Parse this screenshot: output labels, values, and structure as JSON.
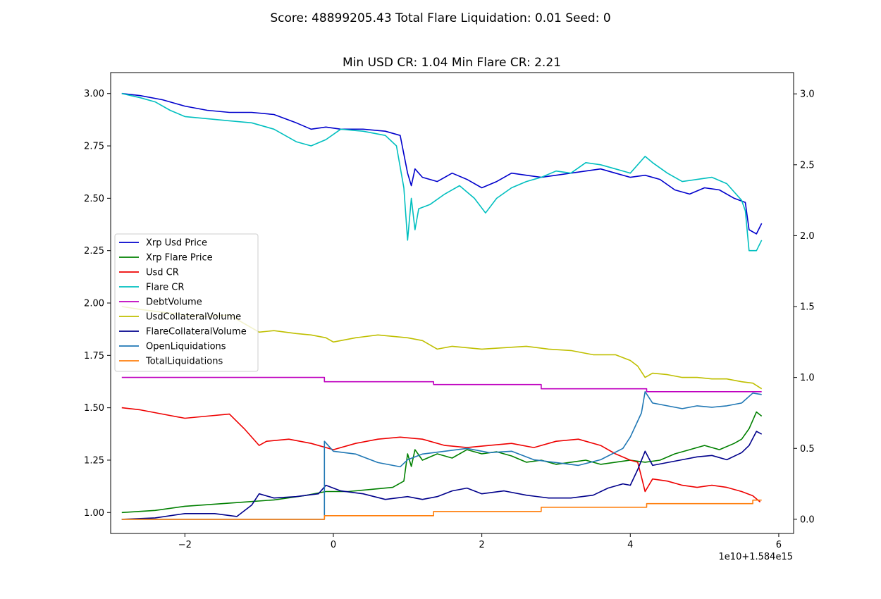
{
  "suptitle": "Score: 48899205.43 Total Flare Liquidation: 0.01 Seed: 0",
  "chart_data": {
    "type": "line",
    "title": "Min USD CR: 1.04 Min Flare CR: 2.21",
    "x_offset_label": "1e10+1.584e15",
    "xlim": [
      -3.0,
      6.2
    ],
    "xticks": [
      -2,
      0,
      2,
      4,
      6
    ],
    "left_axis": {
      "ylim": [
        0.9,
        3.1
      ],
      "ticks": [
        1.0,
        1.25,
        1.5,
        1.75,
        2.0,
        2.25,
        2.5,
        2.75,
        3.0
      ],
      "tick_labels": [
        "1.00",
        "1.25",
        "1.50",
        "1.75",
        "2.00",
        "2.25",
        "2.50",
        "2.75",
        "3.00"
      ]
    },
    "right_axis": {
      "ylim": [
        -0.1,
        3.15
      ],
      "ticks": [
        0.0,
        0.5,
        1.0,
        1.5,
        2.0,
        2.5,
        3.0
      ],
      "tick_labels": [
        "0.0",
        "0.5",
        "1.0",
        "1.5",
        "2.0",
        "2.5",
        "3.0"
      ]
    },
    "legend_position": "center-left",
    "series": [
      {
        "name": "Xrp Usd Price",
        "color": "#0000cc",
        "axis": "left",
        "x": [
          -2.85,
          -2.6,
          -2.3,
          -2.0,
          -1.7,
          -1.4,
          -1.1,
          -0.8,
          -0.5,
          -0.3,
          -0.1,
          0.1,
          0.4,
          0.7,
          0.9,
          1.0,
          1.05,
          1.1,
          1.2,
          1.4,
          1.6,
          1.8,
          2.0,
          2.2,
          2.4,
          2.6,
          2.8,
          3.0,
          3.2,
          3.4,
          3.6,
          3.8,
          4.0,
          4.2,
          4.4,
          4.6,
          4.8,
          5.0,
          5.2,
          5.4,
          5.55,
          5.6,
          5.7,
          5.77
        ],
        "y": [
          3.0,
          2.99,
          2.97,
          2.94,
          2.92,
          2.91,
          2.91,
          2.9,
          2.86,
          2.83,
          2.84,
          2.83,
          2.83,
          2.82,
          2.8,
          2.62,
          2.56,
          2.64,
          2.6,
          2.58,
          2.62,
          2.59,
          2.55,
          2.58,
          2.62,
          2.61,
          2.6,
          2.61,
          2.62,
          2.63,
          2.64,
          2.62,
          2.6,
          2.61,
          2.59,
          2.54,
          2.52,
          2.55,
          2.54,
          2.5,
          2.48,
          2.35,
          2.33,
          2.38
        ]
      },
      {
        "name": "Xrp Flare Price",
        "color": "#008000",
        "axis": "left",
        "x": [
          -2.85,
          -2.4,
          -2.0,
          -1.6,
          -1.2,
          -0.8,
          -0.4,
          -0.1,
          0.2,
          0.5,
          0.8,
          0.95,
          1.0,
          1.05,
          1.1,
          1.2,
          1.4,
          1.6,
          1.8,
          2.0,
          2.2,
          2.4,
          2.6,
          2.8,
          3.0,
          3.2,
          3.4,
          3.6,
          3.8,
          4.0,
          4.2,
          4.4,
          4.6,
          4.8,
          5.0,
          5.2,
          5.4,
          5.5,
          5.6,
          5.7,
          5.77
        ],
        "y": [
          1.0,
          1.01,
          1.03,
          1.04,
          1.05,
          1.06,
          1.08,
          1.1,
          1.1,
          1.11,
          1.12,
          1.15,
          1.28,
          1.22,
          1.3,
          1.25,
          1.28,
          1.26,
          1.3,
          1.28,
          1.29,
          1.27,
          1.24,
          1.25,
          1.23,
          1.24,
          1.25,
          1.23,
          1.24,
          1.25,
          1.24,
          1.25,
          1.28,
          1.3,
          1.32,
          1.3,
          1.33,
          1.35,
          1.4,
          1.48,
          1.46
        ]
      },
      {
        "name": "Usd CR",
        "color": "#ee0000",
        "axis": "left",
        "x": [
          -2.85,
          -2.6,
          -2.3,
          -2.0,
          -1.7,
          -1.4,
          -1.2,
          -1.0,
          -0.9,
          -0.6,
          -0.3,
          0.0,
          0.3,
          0.6,
          0.9,
          1.2,
          1.5,
          1.8,
          2.1,
          2.4,
          2.7,
          3.0,
          3.3,
          3.6,
          3.8,
          4.0,
          4.1,
          4.15,
          4.2,
          4.3,
          4.5,
          4.7,
          4.9,
          5.1,
          5.3,
          5.5,
          5.65,
          5.75
        ],
        "y": [
          1.5,
          1.49,
          1.47,
          1.45,
          1.46,
          1.47,
          1.4,
          1.32,
          1.34,
          1.35,
          1.33,
          1.3,
          1.33,
          1.35,
          1.36,
          1.35,
          1.32,
          1.31,
          1.32,
          1.33,
          1.31,
          1.34,
          1.35,
          1.32,
          1.28,
          1.25,
          1.24,
          1.17,
          1.1,
          1.16,
          1.15,
          1.13,
          1.12,
          1.13,
          1.12,
          1.1,
          1.08,
          1.05
        ]
      },
      {
        "name": "Flare CR",
        "color": "#00bfbf",
        "axis": "left",
        "x": [
          -2.85,
          -2.6,
          -2.4,
          -2.2,
          -2.0,
          -1.7,
          -1.4,
          -1.1,
          -0.8,
          -0.5,
          -0.3,
          -0.1,
          0.1,
          0.4,
          0.7,
          0.85,
          0.95,
          1.0,
          1.05,
          1.1,
          1.15,
          1.3,
          1.5,
          1.7,
          1.9,
          2.05,
          2.2,
          2.4,
          2.6,
          2.8,
          3.0,
          3.2,
          3.4,
          3.6,
          3.8,
          4.0,
          4.2,
          4.3,
          4.5,
          4.7,
          4.9,
          5.1,
          5.3,
          5.5,
          5.55,
          5.6,
          5.7,
          5.77
        ],
        "y": [
          3.0,
          2.98,
          2.96,
          2.92,
          2.89,
          2.88,
          2.87,
          2.86,
          2.83,
          2.77,
          2.75,
          2.78,
          2.83,
          2.82,
          2.8,
          2.75,
          2.55,
          2.3,
          2.5,
          2.35,
          2.45,
          2.47,
          2.52,
          2.56,
          2.5,
          2.43,
          2.5,
          2.55,
          2.58,
          2.6,
          2.63,
          2.62,
          2.67,
          2.66,
          2.64,
          2.62,
          2.7,
          2.67,
          2.62,
          2.58,
          2.59,
          2.6,
          2.57,
          2.49,
          2.44,
          2.25,
          2.25,
          2.3
        ]
      },
      {
        "name": "DebtVolume",
        "color": "#bf00bf",
        "axis": "right",
        "step": true,
        "x": [
          -2.85,
          -0.12,
          -0.12,
          1.35,
          1.35,
          2.8,
          2.8,
          4.22,
          4.22,
          5.77
        ],
        "y": [
          1.0,
          1.0,
          0.97,
          0.97,
          0.95,
          0.95,
          0.92,
          0.92,
          0.9,
          0.9
        ]
      },
      {
        "name": "UsdCollateralVolume",
        "color": "#bfbf00",
        "axis": "right",
        "x": [
          -2.85,
          -2.6,
          -2.3,
          -2.0,
          -1.7,
          -1.4,
          -1.2,
          -1.0,
          -0.8,
          -0.5,
          -0.3,
          -0.1,
          0.0,
          0.3,
          0.6,
          0.8,
          1.0,
          1.2,
          1.4,
          1.6,
          1.8,
          2.0,
          2.3,
          2.6,
          2.9,
          3.2,
          3.5,
          3.8,
          4.0,
          4.1,
          4.2,
          4.3,
          4.5,
          4.7,
          4.9,
          5.1,
          5.3,
          5.5,
          5.65,
          5.77
        ],
        "y": [
          1.5,
          1.48,
          1.46,
          1.44,
          1.43,
          1.44,
          1.38,
          1.32,
          1.33,
          1.31,
          1.3,
          1.28,
          1.25,
          1.28,
          1.3,
          1.29,
          1.28,
          1.26,
          1.2,
          1.22,
          1.21,
          1.2,
          1.21,
          1.22,
          1.2,
          1.19,
          1.16,
          1.16,
          1.12,
          1.08,
          1.0,
          1.03,
          1.02,
          1.0,
          1.0,
          0.99,
          0.99,
          0.97,
          0.96,
          0.92
        ]
      },
      {
        "name": "FlareCollateralVolume",
        "color": "#00008b",
        "axis": "right",
        "x": [
          -2.85,
          -2.4,
          -2.0,
          -1.6,
          -1.3,
          -1.1,
          -1.0,
          -0.8,
          -0.5,
          -0.2,
          -0.1,
          0.1,
          0.4,
          0.7,
          1.0,
          1.2,
          1.4,
          1.6,
          1.8,
          2.0,
          2.3,
          2.6,
          2.9,
          3.2,
          3.5,
          3.7,
          3.9,
          4.0,
          4.1,
          4.2,
          4.3,
          4.5,
          4.7,
          4.9,
          5.1,
          5.3,
          5.5,
          5.6,
          5.7,
          5.77
        ],
        "y": [
          0.0,
          0.01,
          0.04,
          0.04,
          0.02,
          0.1,
          0.18,
          0.15,
          0.16,
          0.18,
          0.24,
          0.2,
          0.18,
          0.14,
          0.16,
          0.14,
          0.16,
          0.2,
          0.22,
          0.18,
          0.2,
          0.17,
          0.15,
          0.15,
          0.17,
          0.22,
          0.25,
          0.24,
          0.35,
          0.48,
          0.38,
          0.4,
          0.42,
          0.44,
          0.45,
          0.42,
          0.47,
          0.52,
          0.62,
          0.6
        ]
      },
      {
        "name": "OpenLiquidations",
        "color": "#1f77b4",
        "axis": "right",
        "x": [
          -2.85,
          -0.12,
          -0.12,
          0.0,
          0.3,
          0.6,
          0.9,
          1.0,
          1.2,
          1.5,
          1.8,
          2.1,
          2.4,
          2.7,
          3.0,
          3.3,
          3.6,
          3.9,
          4.0,
          4.15,
          4.2,
          4.3,
          4.5,
          4.7,
          4.9,
          5.1,
          5.3,
          5.5,
          5.65,
          5.77
        ],
        "y": [
          0.0,
          0.0,
          0.55,
          0.48,
          0.46,
          0.4,
          0.37,
          0.42,
          0.46,
          0.48,
          0.5,
          0.47,
          0.48,
          0.42,
          0.4,
          0.38,
          0.42,
          0.5,
          0.58,
          0.75,
          0.9,
          0.82,
          0.8,
          0.78,
          0.8,
          0.79,
          0.8,
          0.82,
          0.89,
          0.88
        ]
      },
      {
        "name": "TotalLiquidations",
        "color": "#ff7f0e",
        "axis": "right",
        "step": true,
        "x": [
          -2.85,
          -0.12,
          -0.12,
          1.35,
          1.35,
          2.8,
          2.8,
          4.22,
          4.22,
          5.65,
          5.65,
          5.77
        ],
        "y": [
          0.0,
          0.0,
          0.025,
          0.025,
          0.055,
          0.055,
          0.085,
          0.085,
          0.11,
          0.11,
          0.135,
          0.135
        ]
      }
    ]
  }
}
